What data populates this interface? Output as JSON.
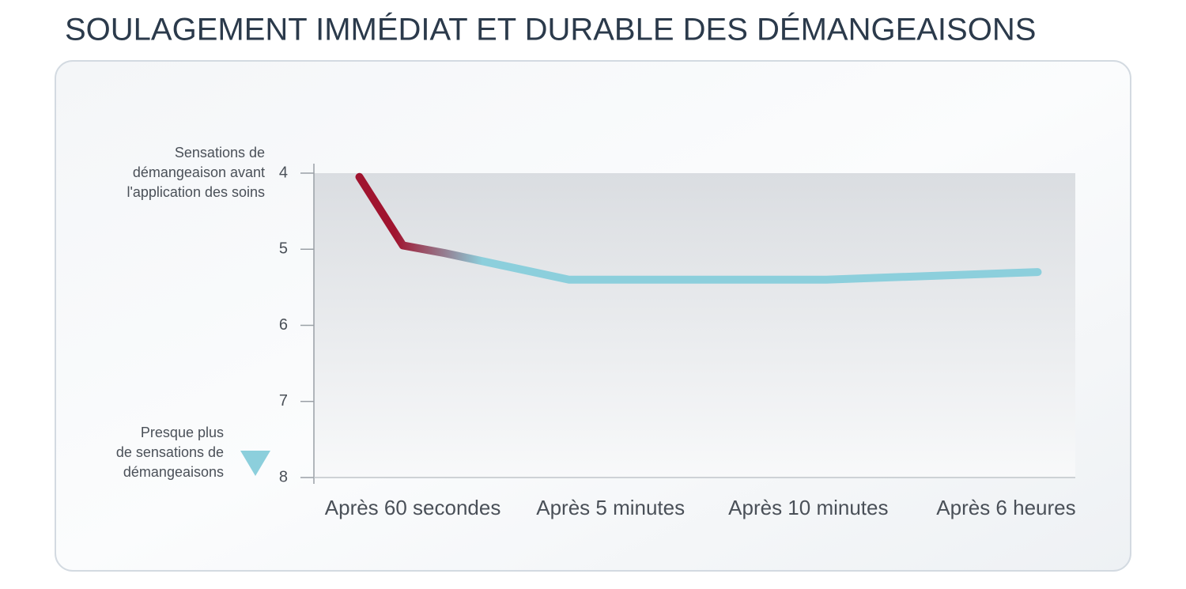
{
  "chart_data": {
    "type": "line",
    "title": "SOULAGEMENT IMMÉDIAT ET DURABLE DES DÉMANGEAISONS",
    "top_label_lines": [
      "Sensations  de",
      "démangeaison avant",
      "l'application des soins"
    ],
    "bottom_label_lines": [
      "Presque plus",
      "de sensations de",
      "démangeaisons"
    ],
    "xlim": [
      -0.5,
      3.35
    ],
    "xticks": [
      {
        "value": 0,
        "label": "Après 60 secondes"
      },
      {
        "value": 1,
        "label": "Après 5 minutes"
      },
      {
        "value": 2,
        "label": "Après 10 minutes"
      },
      {
        "value": 3,
        "label": "Après 6 heures"
      }
    ],
    "ylim": [
      8,
      4
    ],
    "yticks": [
      4,
      5,
      6,
      7,
      8
    ],
    "series": [
      {
        "color": "#8ccfdc",
        "start_color": "#a0142f",
        "x": [
          -0.27,
          -0.05,
          0.16,
          0.79,
          2.09,
          3.16
        ],
        "values": [
          4.05,
          4.95,
          5.05,
          5.4,
          5.4,
          5.3
        ]
      }
    ]
  }
}
